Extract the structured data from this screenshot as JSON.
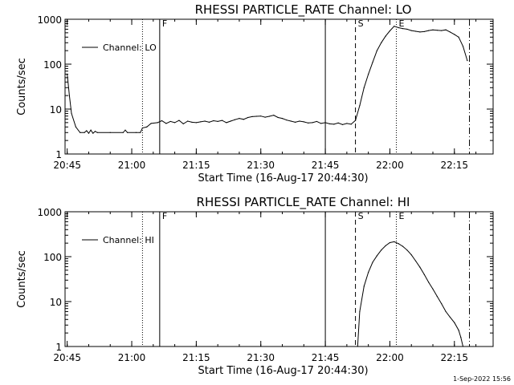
{
  "chart_data": [
    {
      "type": "line",
      "title": "RHESSI PARTICLE_RATE Channel: LO",
      "xlabel": "Start Time (16-Aug-17 20:44:30)",
      "ylabel": "Counts/sec",
      "yscale": "log",
      "xlim": [
        "20:44:30",
        "22:24:00"
      ],
      "ylim": [
        1,
        1000
      ],
      "xticks": [
        "20:45",
        "21:00",
        "21:15",
        "21:30",
        "21:45",
        "22:00",
        "22:15"
      ],
      "yticks": [
        "1",
        "10",
        "100",
        "1000"
      ],
      "legend": {
        "position": "top-left",
        "entries": [
          "Channel: LO"
        ]
      },
      "markers": [
        {
          "time": "21:02:30",
          "style": "dotted",
          "label": ""
        },
        {
          "time": "21:06:30",
          "style": "solid",
          "label": "F"
        },
        {
          "time": "21:45:00",
          "style": "solid",
          "label": ""
        },
        {
          "time": "21:52:00",
          "style": "dashed",
          "label": "S"
        },
        {
          "time": "22:01:30",
          "style": "dotted",
          "label": "E"
        },
        {
          "time": "22:18:30",
          "style": "dashdot",
          "label": ""
        }
      ],
      "series": [
        {
          "name": "Channel: LO",
          "x": [
            "20:45:00",
            "20:45:30",
            "20:46:00",
            "20:47:00",
            "20:48:00",
            "20:49:00",
            "20:49:30",
            "20:50:00",
            "20:50:30",
            "20:51:00",
            "20:51:30",
            "20:52:00",
            "20:55:00",
            "20:58:00",
            "20:58:30",
            "20:59:00",
            "21:01:00",
            "21:02:00",
            "21:02:30",
            "21:03:30",
            "21:04:30",
            "21:06:00",
            "21:07:00",
            "21:08:00",
            "21:09:00",
            "21:10:00",
            "21:11:00",
            "21:12:00",
            "21:13:00",
            "21:14:00",
            "21:15:00",
            "21:16:00",
            "21:17:00",
            "21:18:00",
            "21:19:00",
            "21:20:00",
            "21:21:00",
            "21:22:00",
            "21:23:00",
            "21:24:00",
            "21:25:00",
            "21:26:00",
            "21:27:00",
            "21:28:00",
            "21:29:00",
            "21:30:00",
            "21:31:00",
            "21:32:00",
            "21:33:00",
            "21:34:00",
            "21:35:00",
            "21:36:00",
            "21:37:00",
            "21:38:00",
            "21:39:00",
            "21:40:00",
            "21:41:00",
            "21:42:00",
            "21:43:00",
            "21:44:00",
            "21:45:00",
            "21:46:00",
            "21:47:00",
            "21:48:00",
            "21:49:00",
            "21:50:00",
            "21:51:00",
            "21:52:00",
            "21:53:00",
            "21:54:00",
            "21:55:00",
            "21:56:00",
            "21:57:00",
            "21:58:00",
            "21:59:00",
            "22:00:00",
            "22:01:00",
            "22:02:00",
            "22:03:00",
            "22:04:00",
            "22:05:00",
            "22:06:00",
            "22:07:00",
            "22:08:00",
            "22:09:00",
            "22:10:00",
            "22:11:00",
            "22:12:00",
            "22:13:00",
            "22:14:00",
            "22:15:00",
            "22:16:00",
            "22:17:00",
            "22:18:00"
          ],
          "values": [
            60,
            20,
            8,
            4,
            3,
            3,
            3.3,
            2.9,
            3.4,
            2.9,
            3.2,
            3,
            3,
            3,
            3.4,
            3,
            3,
            3,
            3.8,
            4,
            4.8,
            5,
            5.5,
            4.8,
            5.3,
            5,
            5.6,
            4.7,
            5.4,
            5.1,
            5,
            5.2,
            5.4,
            5.1,
            5.5,
            5.3,
            5.6,
            5,
            5.4,
            5.8,
            6.2,
            5.9,
            6.5,
            6.8,
            6.9,
            7,
            6.6,
            6.9,
            7.3,
            6.5,
            6.2,
            5.7,
            5.4,
            5.1,
            5.4,
            5.2,
            4.9,
            5,
            5.3,
            4.8,
            5,
            4.7,
            4.6,
            4.9,
            4.5,
            4.8,
            4.6,
            5.6,
            12,
            30,
            60,
            110,
            200,
            300,
            420,
            550,
            700,
            650,
            620,
            600,
            560,
            540,
            520,
            530,
            560,
            580,
            570,
            560,
            580,
            520,
            460,
            400,
            250,
            120
          ]
        }
      ]
    },
    {
      "type": "line",
      "title": "RHESSI PARTICLE_RATE Channel: HI",
      "xlabel": "Start Time (16-Aug-17 20:44:30)",
      "ylabel": "Counts/sec",
      "yscale": "log",
      "xlim": [
        "20:44:30",
        "22:24:00"
      ],
      "ylim": [
        1,
        1000
      ],
      "xticks": [
        "20:45",
        "21:00",
        "21:15",
        "21:30",
        "21:45",
        "22:00",
        "22:15"
      ],
      "yticks": [
        "1",
        "10",
        "100",
        "1000"
      ],
      "legend": {
        "position": "top-left",
        "entries": [
          "Channel: HI"
        ]
      },
      "markers": [
        {
          "time": "21:02:30",
          "style": "dotted",
          "label": ""
        },
        {
          "time": "21:06:30",
          "style": "solid",
          "label": "F"
        },
        {
          "time": "21:45:00",
          "style": "solid",
          "label": ""
        },
        {
          "time": "21:52:00",
          "style": "dashed",
          "label": "S"
        },
        {
          "time": "22:01:30",
          "style": "dotted",
          "label": "E"
        },
        {
          "time": "22:18:30",
          "style": "dashdot",
          "label": ""
        }
      ],
      "series": [
        {
          "name": "Channel: HI",
          "x": [
            "21:52:30",
            "21:53:00",
            "21:54:00",
            "21:55:00",
            "21:56:00",
            "21:57:00",
            "21:58:00",
            "21:59:00",
            "22:00:00",
            "22:01:00",
            "22:02:00",
            "22:03:00",
            "22:04:00",
            "22:05:00",
            "22:06:00",
            "22:07:00",
            "22:08:00",
            "22:09:00",
            "22:10:00",
            "22:11:00",
            "22:12:00",
            "22:13:00",
            "22:14:00",
            "22:15:00",
            "22:16:00",
            "22:16:30",
            "22:17:00"
          ],
          "values": [
            1,
            6,
            22,
            45,
            75,
            105,
            140,
            175,
            205,
            215,
            195,
            170,
            140,
            110,
            80,
            58,
            40,
            27,
            19,
            13,
            9,
            6,
            4.5,
            3.4,
            2.3,
            1.6,
            1
          ]
        }
      ]
    }
  ],
  "footer": {
    "timestamp": "1-Sep-2022 15:56"
  }
}
